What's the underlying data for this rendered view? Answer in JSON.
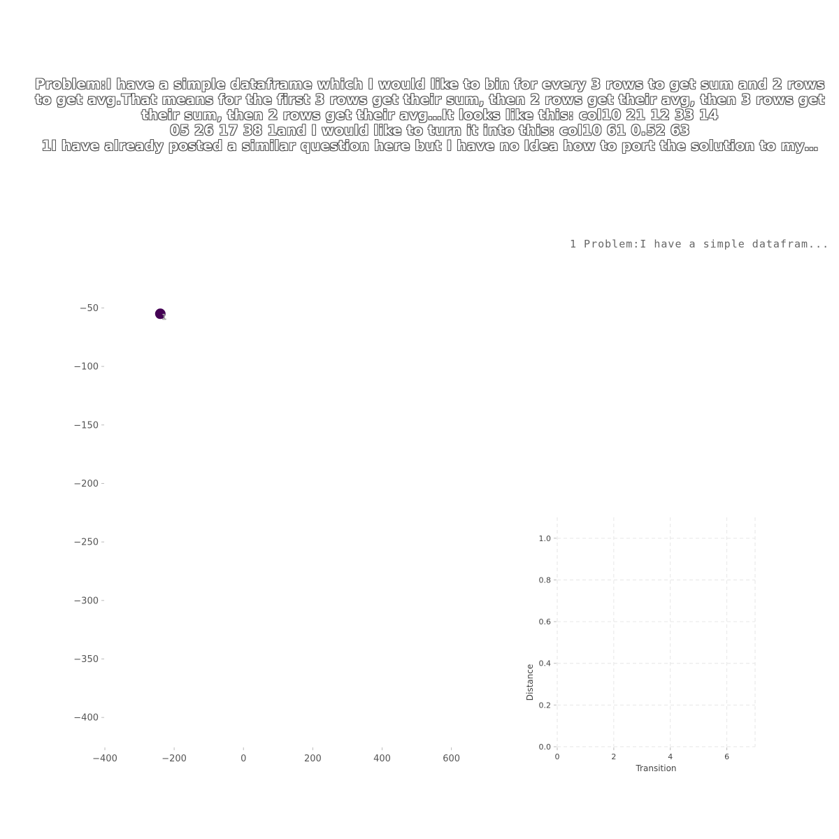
{
  "title_lines": [
    "Problem:I have a simple dataframe which I would like to bin for every 3 rows to get sum and 2 rows",
    "to get avg.That means for the first 3 rows get their sum, then 2 rows get their avg, then 3 rows get",
    "their sum, then 2 rows get their avg…It looks like this:    col10       21       12       33       14",
    "05       26       17       38       1and I would like to turn it into this:    col10     61     0.52     63",
    "1I have already posted a similar question here but I have no Idea how to port the solution to my…"
  ],
  "legend_text": "1  Problem:I have a simple datafram...",
  "chart_data": [
    {
      "type": "scatter",
      "xticks": [
        -400,
        -200,
        0,
        200,
        400,
        600
      ],
      "yticks": [
        -50,
        -100,
        -150,
        -200,
        -250,
        -300,
        -350,
        -400
      ],
      "xlim": [
        -400,
        740
      ],
      "ylim": [
        -425,
        10
      ],
      "points": [
        {
          "x": -240,
          "y": -55,
          "label": "1"
        }
      ],
      "point_color": "#440154",
      "grid": false
    },
    {
      "type": "line",
      "xlabel": "Transition",
      "ylabel": "Distance",
      "xticks": [
        0,
        2,
        4,
        6
      ],
      "yticks": [
        0.0,
        0.2,
        0.4,
        0.6,
        0.8,
        1.0
      ],
      "xlim": [
        0,
        7
      ],
      "ylim": [
        0,
        1.1
      ],
      "grid": true,
      "series": []
    }
  ]
}
